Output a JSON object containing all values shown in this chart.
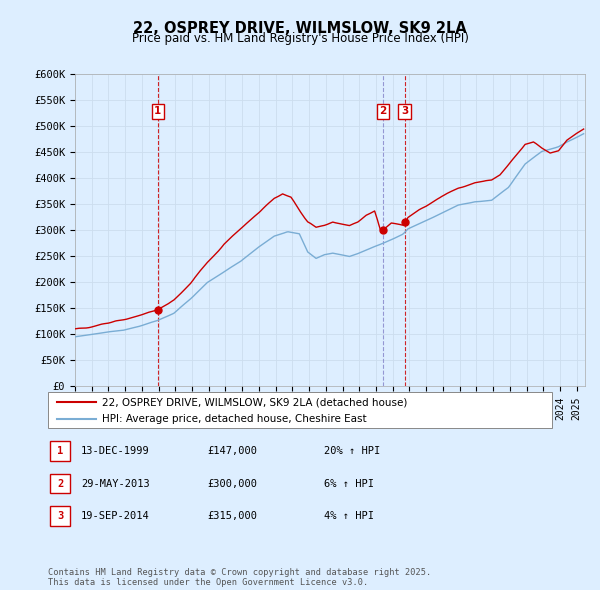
{
  "title": "22, OSPREY DRIVE, WILMSLOW, SK9 2LA",
  "subtitle": "Price paid vs. HM Land Registry's House Price Index (HPI)",
  "legend_label_red": "22, OSPREY DRIVE, WILMSLOW, SK9 2LA (detached house)",
  "legend_label_blue": "HPI: Average price, detached house, Cheshire East",
  "red_color": "#cc0000",
  "blue_color": "#7aadd4",
  "vline_color": "#cc0000",
  "vline2_color": "#8888cc",
  "grid_color": "#ccddee",
  "background_color": "#ddeeff",
  "plot_bg_color": "#ddeeff",
  "ylim": [
    0,
    600000
  ],
  "yticks": [
    0,
    50000,
    100000,
    150000,
    200000,
    250000,
    300000,
    350000,
    400000,
    450000,
    500000,
    550000,
    600000
  ],
  "ytick_labels": [
    "£0",
    "£50K",
    "£100K",
    "£150K",
    "£200K",
    "£250K",
    "£300K",
    "£350K",
    "£400K",
    "£450K",
    "£500K",
    "£550K",
    "£600K"
  ],
  "sale_dates": [
    "1999-12-13",
    "2013-05-29",
    "2014-09-19"
  ],
  "sale_prices": [
    147000,
    300000,
    315000
  ],
  "sale_labels": [
    "1",
    "2",
    "3"
  ],
  "table_rows": [
    [
      "1",
      "13-DEC-1999",
      "£147,000",
      "20% ↑ HPI"
    ],
    [
      "2",
      "29-MAY-2013",
      "£300,000",
      "6% ↑ HPI"
    ],
    [
      "3",
      "19-SEP-2014",
      "£315,000",
      "4% ↑ HPI"
    ]
  ],
  "footer_text": "Contains HM Land Registry data © Crown copyright and database right 2025.\nThis data is licensed under the Open Government Licence v3.0.",
  "x_start_year": 1995,
  "x_end_year": 2025
}
